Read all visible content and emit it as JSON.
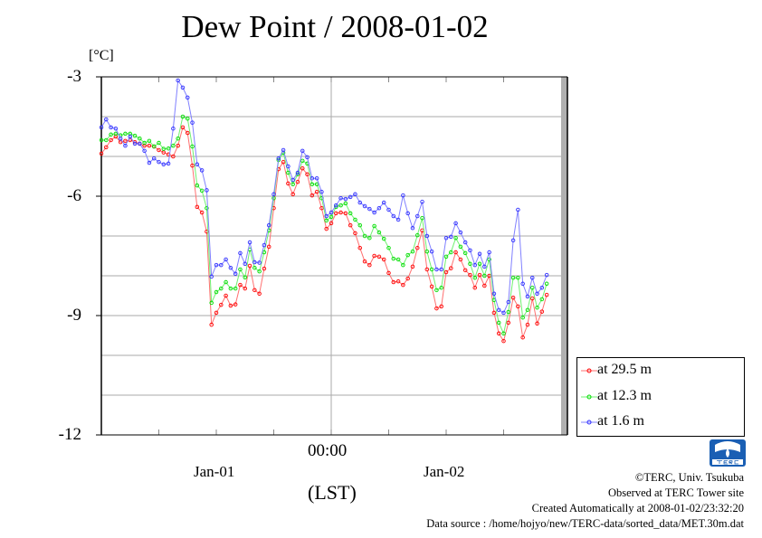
{
  "title": "Dew Point / 2008-01-02",
  "y_unit": "[°C]",
  "x_axis": {
    "midnight_label": "00:00",
    "day_labels": [
      "Jan-01",
      "Jan-02"
    ],
    "timezone_label": "(LST)"
  },
  "footer": {
    "copyright": "©TERC, Univ. Tsukuba",
    "site": "Observed at TERC Tower site",
    "created": "Created Automatically at 2008-01-02/23:32:20",
    "source": "Data source : /home/hojyo/new/TERC-data/sorted_data/MET.30m.dat",
    "logo_text": "TERC"
  },
  "chart_data": {
    "type": "line",
    "title": "Dew Point / 2008-01-02",
    "xlabel": "(LST)",
    "ylabel": "[°C]",
    "x_unit": "hours since 2008-01-01 00:00",
    "x_start": 0,
    "x_step": 0.5,
    "xlim": [
      0,
      48
    ],
    "ylim": [
      -12,
      -3
    ],
    "yticks": [
      -3,
      -6,
      -9,
      -12
    ],
    "ytick_labels": [
      "-3",
      "-6",
      "-9",
      "-12"
    ],
    "grid": true,
    "legend_placement": "right-bottom-outside",
    "series": [
      {
        "name": "at 29.5 m",
        "color": "#ff0000",
        "line_color": "#ff7070",
        "values": [
          -4.93,
          -4.77,
          -4.59,
          -4.5,
          -4.64,
          -4.61,
          -4.59,
          -4.64,
          -4.68,
          -4.73,
          -4.73,
          -4.75,
          -4.84,
          -4.9,
          -4.95,
          -5.0,
          -4.73,
          -4.27,
          -4.41,
          -5.23,
          -6.27,
          -6.41,
          -6.89,
          -9.23,
          -8.93,
          -8.73,
          -8.5,
          -8.75,
          -8.72,
          -8.23,
          -8.32,
          -7.75,
          -8.36,
          -8.45,
          -7.82,
          -7.27,
          -6.3,
          -5.32,
          -5.14,
          -5.68,
          -5.95,
          -5.64,
          -5.3,
          -5.45,
          -5.98,
          -5.89,
          -6.3,
          -6.82,
          -6.68,
          -6.43,
          -6.41,
          -6.43,
          -6.73,
          -6.93,
          -7.3,
          -7.64,
          -7.73,
          -7.5,
          -7.52,
          -7.59,
          -7.93,
          -8.16,
          -8.14,
          -8.23,
          -8.07,
          -7.77,
          -7.3,
          -6.86,
          -7.84,
          -8.27,
          -8.82,
          -8.77,
          -7.91,
          -7.81,
          -7.41,
          -7.59,
          -7.86,
          -7.98,
          -8.3,
          -7.98,
          -8.25,
          -8.0,
          -8.93,
          -9.45,
          -9.64,
          -9.18,
          -8.55,
          -8.77,
          -9.55,
          -9.23,
          -8.57,
          -9.2,
          -8.9,
          -8.48
        ]
      },
      {
        "name": "at 12.3 m",
        "color": "#00dd00",
        "line_color": "#70f070",
        "values": [
          -4.59,
          -4.59,
          -4.45,
          -4.43,
          -4.47,
          -4.43,
          -4.43,
          -4.48,
          -4.55,
          -4.66,
          -4.61,
          -4.75,
          -4.66,
          -4.81,
          -4.8,
          -4.73,
          -4.55,
          -4.0,
          -4.05,
          -4.75,
          -5.73,
          -5.86,
          -6.3,
          -8.68,
          -8.41,
          -8.32,
          -8.16,
          -8.32,
          -8.32,
          -7.84,
          -8.04,
          -7.34,
          -7.8,
          -7.89,
          -7.41,
          -6.86,
          -6.05,
          -5.09,
          -4.91,
          -5.41,
          -5.7,
          -5.45,
          -5.11,
          -5.18,
          -5.7,
          -5.7,
          -6.05,
          -6.61,
          -6.52,
          -6.27,
          -6.23,
          -6.18,
          -6.43,
          -6.59,
          -6.73,
          -7.0,
          -7.05,
          -6.75,
          -6.91,
          -7.07,
          -7.3,
          -7.57,
          -7.59,
          -7.73,
          -7.48,
          -7.39,
          -6.98,
          -6.55,
          -7.39,
          -7.84,
          -8.36,
          -8.3,
          -7.52,
          -7.41,
          -7.05,
          -7.27,
          -7.43,
          -7.7,
          -8.05,
          -7.7,
          -8.0,
          -7.59,
          -8.61,
          -9.18,
          -9.45,
          -8.91,
          -8.05,
          -8.05,
          -9.05,
          -8.86,
          -8.3,
          -8.8,
          -8.59,
          -8.2
        ]
      },
      {
        "name": "at 1.6 m",
        "color": "#3030ff",
        "line_color": "#8080ff",
        "values": [
          -4.27,
          -4.07,
          -4.27,
          -4.3,
          -4.55,
          -4.73,
          -4.5,
          -4.68,
          -4.68,
          -4.86,
          -5.16,
          -5.05,
          -5.14,
          -5.2,
          -5.18,
          -4.3,
          -3.09,
          -3.27,
          -3.52,
          -4.15,
          -5.2,
          -5.35,
          -5.85,
          -8.02,
          -7.73,
          -7.73,
          -7.59,
          -7.8,
          -7.95,
          -7.43,
          -7.7,
          -7.16,
          -7.66,
          -7.67,
          -7.23,
          -6.73,
          -5.95,
          -5.05,
          -4.84,
          -5.25,
          -5.59,
          -5.41,
          -4.86,
          -5.02,
          -5.55,
          -5.55,
          -5.89,
          -6.5,
          -6.41,
          -6.23,
          -6.05,
          -6.07,
          -6.02,
          -5.95,
          -6.16,
          -6.25,
          -6.32,
          -6.41,
          -6.3,
          -6.16,
          -6.34,
          -6.5,
          -6.59,
          -5.98,
          -6.43,
          -6.8,
          -6.5,
          -6.14,
          -7.0,
          -7.39,
          -7.84,
          -7.84,
          -7.05,
          -7.02,
          -6.68,
          -6.91,
          -7.16,
          -7.36,
          -7.73,
          -7.45,
          -7.77,
          -7.41,
          -8.45,
          -8.86,
          -8.93,
          -8.66,
          -7.11,
          -6.34,
          -8.2,
          -8.52,
          -8.05,
          -8.45,
          -8.3,
          -7.98
        ]
      }
    ]
  }
}
